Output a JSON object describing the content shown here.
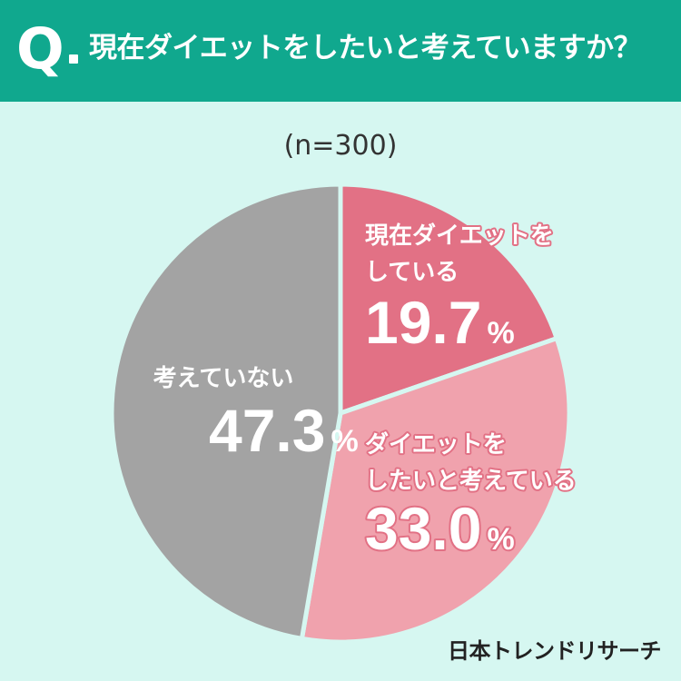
{
  "header": {
    "q_mark": "Q",
    "question": "現在ダイエットをしたいと考えていますか？"
  },
  "sample_size_label": "(n=300)",
  "brand": "日本トレンドリサーチ",
  "colors": {
    "header_bg": "#10a88e",
    "background": "#d6f7f1",
    "slice_doing": "#e27185",
    "slice_want": "#f0a2ad",
    "slice_not": "#a3a3a3"
  },
  "chart_data": {
    "type": "pie",
    "title": "現在ダイエットをしたいと考えていますか？",
    "slices": [
      {
        "label_lines": [
          "現在ダイエットを",
          "している"
        ],
        "value": 19.7,
        "value_text": "19.7",
        "unit": "%",
        "color": "#e27185",
        "text_color": "#ffffff",
        "label_color": "#ffffff",
        "outline": "#e27185"
      },
      {
        "label_lines": [
          "ダイエットを",
          "したいと考えている"
        ],
        "value": 33.0,
        "value_text": "33.0",
        "unit": "%",
        "color": "#f0a2ad",
        "text_color": "#ffffff",
        "label_color": "#ffffff",
        "outline": "#e27185"
      },
      {
        "label_lines": [
          "考えていない"
        ],
        "value": 47.3,
        "value_text": "47.3",
        "unit": "%",
        "color": "#a3a3a3",
        "text_color": "#ffffff",
        "label_color": "#ffffff",
        "outline": "none"
      }
    ]
  }
}
